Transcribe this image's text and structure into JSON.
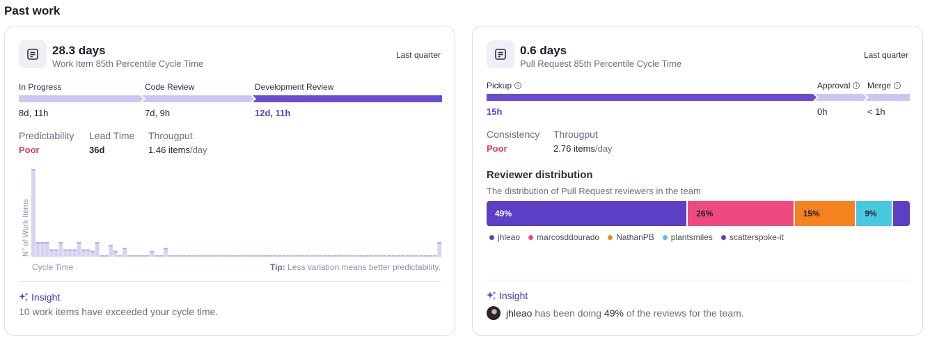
{
  "page_title": "Past work",
  "left_card": {
    "metric_value": "28.3 days",
    "metric_label": "Work Item 85th Percentile Cycle Time",
    "period": "Last quarter",
    "stages": [
      {
        "label": "In Progress",
        "value": "8d, 11h",
        "active": false,
        "color": "#cdc6f4"
      },
      {
        "label": "Code Review",
        "value": "7d, 9h",
        "active": false,
        "color": "#cdc6f4"
      },
      {
        "label": "Development Review",
        "value": "12d, 11h",
        "active": true,
        "color": "#6a4bd4"
      }
    ],
    "stats": {
      "predictability_label": "Predictability",
      "predictability_value": "Poor",
      "lead_time_label": "Lead Time",
      "lead_time_value": "36d",
      "throughput_label": "Througput",
      "throughput_value": "1.46 items",
      "throughput_unit": "/day"
    },
    "chart_data": {
      "type": "bar",
      "ylabel": "N° of Work Items",
      "xlabel": "Cycle Time",
      "values": [
        12,
        2,
        2,
        2,
        1,
        1,
        2,
        1,
        1,
        1,
        2,
        1,
        1,
        0.8,
        2,
        0.2,
        0.2,
        1.6,
        0.8,
        0.2,
        1.2,
        0.2,
        0.2,
        0.2,
        0.2,
        0.2,
        0.8,
        0.2,
        0.2,
        1.2,
        0.2,
        0.2,
        0.2,
        0.2,
        0.2,
        0.2,
        0.2,
        0.2,
        0.2,
        0.2,
        0.2,
        0.2,
        0.2,
        0.2,
        0.2,
        0.2,
        0.2,
        0.2,
        0.2,
        0.2,
        0.2,
        0.2,
        0.2,
        0.2,
        0.2,
        0.2,
        0.2,
        0.2,
        0.2,
        0.2,
        0.2,
        0.2,
        0.2,
        0.2,
        0.2,
        0.2,
        0.2,
        0.2,
        0.2,
        0.2,
        0.2,
        0.2,
        0.2,
        0.2,
        0.2,
        0.2,
        0.2,
        0.2,
        0.2,
        0.2,
        0.2,
        0.2,
        0.2,
        0.2,
        0.2,
        0.2,
        0.2,
        0.2,
        0.2,
        2
      ],
      "tip_prefix": "Tip:",
      "tip_text": " Less variation means better predictability."
    },
    "insight": {
      "title": "Insight",
      "text": "10 work items have exceeded your cycle time."
    }
  },
  "right_card": {
    "metric_value": "0.6 days",
    "metric_label": "Pull Request 85th Percentile Cycle Time",
    "period": "Last quarter",
    "stages": [
      {
        "label": "Pickup",
        "value": "15h",
        "active": true,
        "color": "#6a4bd4"
      },
      {
        "label": "Approval",
        "value": "0h",
        "active": false,
        "color": "#cdc6f4"
      },
      {
        "label": "Merge",
        "value": "< 1h",
        "active": false,
        "color": "#cdc6f4"
      }
    ],
    "stats": {
      "consistency_label": "Consistency",
      "consistency_value": "Poor",
      "throughput_label": "Througput",
      "throughput_value": "2.76 items",
      "throughput_unit": "/day"
    },
    "reviewer_distribution": {
      "title": "Reviewer distribution",
      "subtitle": "The distribution of Pull Request reviewers in the team",
      "segments": [
        {
          "name": "jhleao",
          "percent": 49,
          "label": "49%",
          "color": "#5b3fc4",
          "text_color": "#ffffff"
        },
        {
          "name": "marcosddourado",
          "percent": 26,
          "label": "26%",
          "color": "#ee4a7f",
          "text_color": "#1f2330"
        },
        {
          "name": "NathanPB",
          "percent": 15,
          "label": "15%",
          "color": "#f5821f",
          "text_color": "#1f2330"
        },
        {
          "name": "plantsmiles",
          "percent": 9,
          "label": "9%",
          "color": "#48c8de",
          "text_color": "#1f2330"
        },
        {
          "name": "scatterspoke-it",
          "percent": 4,
          "label": "",
          "color": "#5b3fc4",
          "text_color": "#ffffff"
        }
      ]
    },
    "insight": {
      "title": "Insight",
      "user": "jhleao",
      "text_middle": " has been doing ",
      "percent": "49%",
      "text_end": " of the reviews for the team."
    }
  }
}
